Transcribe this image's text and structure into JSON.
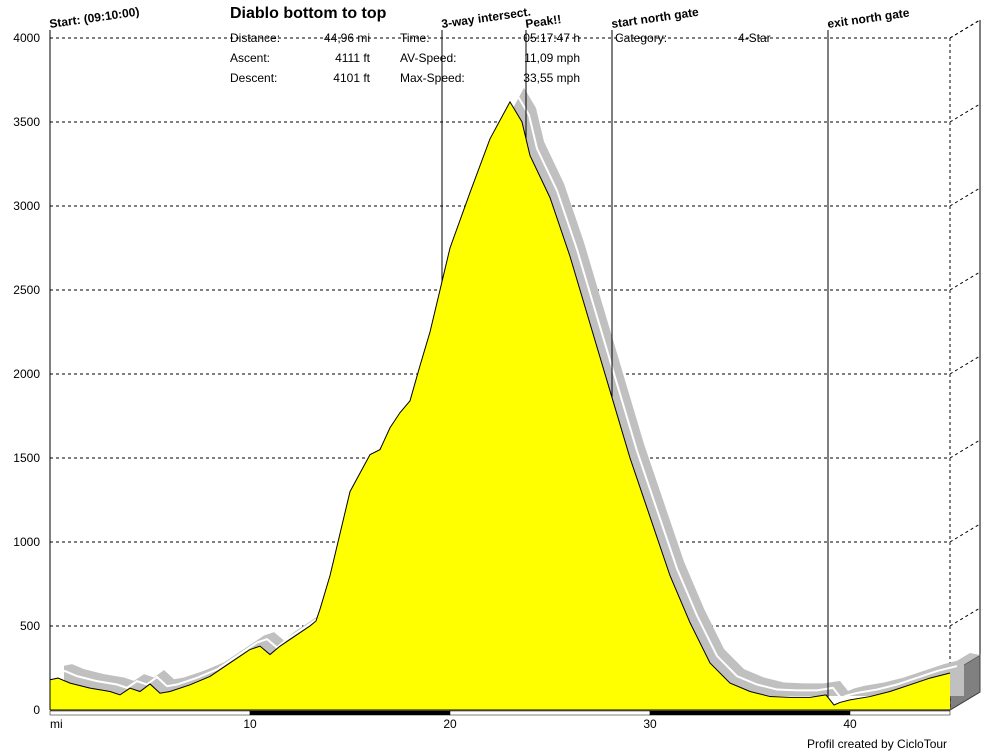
{
  "chart_data": {
    "type": "area",
    "title": "Diablo bottom to top",
    "xlabel": "mi",
    "ylabel": "",
    "xlim": [
      0,
      45
    ],
    "ylim": [
      0,
      4000
    ],
    "x_ticks": [
      10,
      20,
      30,
      40
    ],
    "y_ticks": [
      0,
      500,
      1000,
      1500,
      2000,
      2500,
      3000,
      3500,
      4000
    ],
    "grid": true,
    "fill_color": "#ffff00",
    "shadow_color": "#c0c0c0",
    "series": [
      {
        "x": [
          0,
          0.4,
          1,
          2,
          3,
          3.5,
          4,
          4.5,
          5,
          5.5,
          6,
          7,
          8,
          9,
          10,
          10.5,
          11,
          11.5,
          12,
          13,
          13.3,
          13.5,
          14,
          14.5,
          15,
          16,
          16.5,
          17,
          17.5,
          18,
          18.5,
          19,
          19.5,
          20,
          21,
          22,
          23,
          23.6,
          24,
          25,
          26,
          27,
          28,
          29,
          30,
          31,
          32,
          33,
          34,
          35,
          36,
          37,
          38,
          38.8,
          39.2,
          39.5,
          40,
          41,
          42,
          43,
          44,
          45
        ],
        "y": [
          180,
          190,
          160,
          130,
          110,
          90,
          130,
          110,
          155,
          100,
          110,
          150,
          200,
          280,
          360,
          380,
          330,
          380,
          420,
          500,
          530,
          600,
          800,
          1050,
          1300,
          1520,
          1550,
          1680,
          1770,
          1840,
          2050,
          2250,
          2500,
          2750,
          3080,
          3400,
          3620,
          3500,
          3300,
          3050,
          2700,
          2300,
          1900,
          1500,
          1150,
          800,
          520,
          280,
          160,
          110,
          80,
          75,
          75,
          90,
          30,
          45,
          60,
          80,
          110,
          150,
          190,
          220
        ]
      }
    ],
    "markers": [
      {
        "x": 0,
        "label": "Start: (09:10:00)"
      },
      {
        "x": 19.6,
        "label": "3-way intersect."
      },
      {
        "x": 23.8,
        "label": "Peak!!"
      },
      {
        "x": 28.1,
        "label": "start north gate"
      },
      {
        "x": 38.9,
        "label": "exit north gate"
      }
    ]
  },
  "info": {
    "distance_label": "Distance:",
    "distance_value": "44,96 mi",
    "ascent_label": "Ascent:",
    "ascent_value": "4111 ft",
    "descent_label": "Descent:",
    "descent_value": "4101 ft",
    "time_label": "Time:",
    "time_value": "05:17:47 h",
    "avspeed_label": "AV-Speed:",
    "avspeed_value": "11,09 mph",
    "maxspeed_label": "Max-Speed:",
    "maxspeed_value": "33,55 mph",
    "category_label": "Category:",
    "category_value": "4-Star"
  },
  "credit": "Profil created by CicloTour"
}
